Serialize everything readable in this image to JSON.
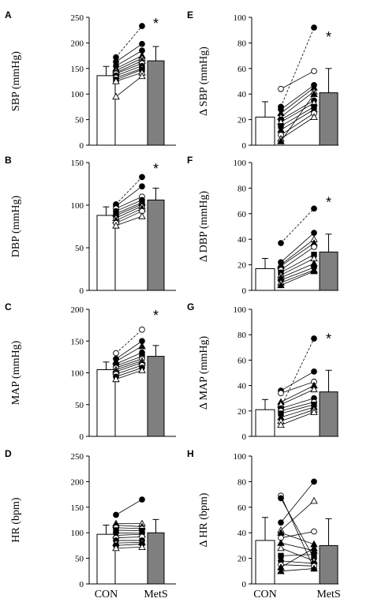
{
  "chart_data": [
    {
      "type": "bar",
      "panel": "A",
      "ylabel": "SBP (mmHg)",
      "ylim": [
        0,
        250
      ],
      "yticks": [
        0,
        50,
        100,
        150,
        200,
        250
      ],
      "categories": [
        "CON",
        "MetS"
      ],
      "values": [
        136,
        165
      ],
      "errors": [
        18,
        28
      ],
      "significance": "*",
      "paired_points": [
        {
          "con": 172,
          "mets": 233,
          "marker": "filled-circle",
          "dashed": true
        },
        {
          "con": 163,
          "mets": 198,
          "marker": "filled-circle"
        },
        {
          "con": 155,
          "mets": 185,
          "marker": "filled-circle"
        },
        {
          "con": 150,
          "mets": 175,
          "marker": "filled-triangle"
        },
        {
          "con": 146,
          "mets": 170,
          "marker": "open-triangle"
        },
        {
          "con": 142,
          "mets": 165,
          "marker": "filled-triangle"
        },
        {
          "con": 140,
          "mets": 160,
          "marker": "open-circle"
        },
        {
          "con": 136,
          "mets": 155,
          "marker": "filled-circle"
        },
        {
          "con": 132,
          "mets": 150,
          "marker": "open-circle"
        },
        {
          "con": 128,
          "mets": 148,
          "marker": "filled-square"
        },
        {
          "con": 125,
          "mets": 142,
          "marker": "open-triangle"
        },
        {
          "con": 95,
          "mets": 135,
          "marker": "open-triangle"
        }
      ]
    },
    {
      "type": "bar",
      "panel": "B",
      "ylabel": "DBP (mmHg)",
      "ylim": [
        0,
        150
      ],
      "yticks": [
        0,
        50,
        100,
        150
      ],
      "categories": [
        "CON",
        "MetS"
      ],
      "values": [
        88,
        106
      ],
      "errors": [
        10,
        14
      ],
      "significance": "*",
      "paired_points": [
        {
          "con": 101,
          "mets": 133,
          "marker": "filled-circle",
          "dashed": true
        },
        {
          "con": 99,
          "mets": 122,
          "marker": "filled-circle"
        },
        {
          "con": 96,
          "mets": 110,
          "marker": "open-circle"
        },
        {
          "con": 93,
          "mets": 106,
          "marker": "filled-circle"
        },
        {
          "con": 90,
          "mets": 103,
          "marker": "filled-triangle"
        },
        {
          "con": 88,
          "mets": 101,
          "marker": "filled-square"
        },
        {
          "con": 85,
          "mets": 99,
          "marker": "open-triangle"
        },
        {
          "con": 82,
          "mets": 96,
          "marker": "filled-triangle"
        },
        {
          "con": 79,
          "mets": 93,
          "marker": "open-circle"
        },
        {
          "con": 76,
          "mets": 87,
          "marker": "open-triangle"
        }
      ]
    },
    {
      "type": "bar",
      "panel": "C",
      "ylabel": "MAP (mmHg)",
      "ylim": [
        0,
        200
      ],
      "yticks": [
        0,
        50,
        100,
        150,
        200
      ],
      "categories": [
        "CON",
        "MetS"
      ],
      "values": [
        105,
        126
      ],
      "errors": [
        12,
        17
      ],
      "significance": "*",
      "paired_points": [
        {
          "con": 131,
          "mets": 168,
          "marker": "open-circle",
          "dashed": true
        },
        {
          "con": 122,
          "mets": 150,
          "marker": "filled-circle"
        },
        {
          "con": 118,
          "mets": 142,
          "marker": "filled-triangle"
        },
        {
          "con": 114,
          "mets": 132,
          "marker": "filled-circle"
        },
        {
          "con": 111,
          "mets": 126,
          "marker": "filled-square"
        },
        {
          "con": 108,
          "mets": 122,
          "marker": "open-circle"
        },
        {
          "con": 105,
          "mets": 119,
          "marker": "open-triangle"
        },
        {
          "con": 102,
          "mets": 116,
          "marker": "filled-triangle"
        },
        {
          "con": 98,
          "mets": 112,
          "marker": "open-circle"
        },
        {
          "con": 94,
          "mets": 108,
          "marker": "filled-circle"
        },
        {
          "con": 90,
          "mets": 104,
          "marker": "open-triangle"
        }
      ]
    },
    {
      "type": "bar",
      "panel": "D",
      "ylabel": "HR (bpm)",
      "ylim": [
        0,
        250
      ],
      "yticks": [
        0,
        50,
        100,
        150,
        200,
        250
      ],
      "categories": [
        "CON",
        "MetS"
      ],
      "values": [
        97,
        100
      ],
      "errors": [
        18,
        26
      ],
      "significance": "",
      "paired_points": [
        {
          "con": 135,
          "mets": 165,
          "marker": "filled-circle"
        },
        {
          "con": 118,
          "mets": 118,
          "marker": "open-triangle"
        },
        {
          "con": 115,
          "mets": 112,
          "marker": "filled-triangle"
        },
        {
          "con": 110,
          "mets": 108,
          "marker": "open-circle"
        },
        {
          "con": 105,
          "mets": 104,
          "marker": "filled-square"
        },
        {
          "con": 100,
          "mets": 99,
          "marker": "filled-circle"
        },
        {
          "con": 95,
          "mets": 97,
          "marker": "filled-triangle"
        },
        {
          "con": 90,
          "mets": 92,
          "marker": "open-circle"
        },
        {
          "con": 85,
          "mets": 85,
          "marker": "filled-circle"
        },
        {
          "con": 80,
          "mets": 81,
          "marker": "open-triangle"
        },
        {
          "con": 75,
          "mets": 78,
          "marker": "filled-circle"
        },
        {
          "con": 70,
          "mets": 72,
          "marker": "open-triangle"
        }
      ]
    },
    {
      "type": "bar",
      "panel": "E",
      "ylabel": "Δ SBP (mmHg)",
      "ylim": [
        0,
        100
      ],
      "yticks": [
        0,
        20,
        40,
        60,
        80,
        100
      ],
      "categories": [
        "CON",
        "MetS"
      ],
      "values": [
        22,
        41
      ],
      "errors": [
        12,
        19
      ],
      "significance": "*",
      "paired_points": [
        {
          "con": 30,
          "mets": 92,
          "marker": "filled-circle",
          "dashed": true
        },
        {
          "con": 44,
          "mets": 58,
          "marker": "open-circle"
        },
        {
          "con": 28,
          "mets": 47,
          "marker": "filled-circle"
        },
        {
          "con": 25,
          "mets": 45,
          "marker": "filled-triangle"
        },
        {
          "con": 22,
          "mets": 42,
          "marker": "open-triangle"
        },
        {
          "con": 20,
          "mets": 35,
          "marker": "filled-circle"
        },
        {
          "con": 18,
          "mets": 33,
          "marker": "open-triangle"
        },
        {
          "con": 15,
          "mets": 30,
          "marker": "filled-square"
        },
        {
          "con": 12,
          "mets": 28,
          "marker": "filled-triangle"
        },
        {
          "con": 8,
          "mets": 25,
          "marker": "open-circle"
        },
        {
          "con": 5,
          "mets": 22,
          "marker": "open-triangle"
        },
        {
          "con": 3,
          "mets": 40,
          "marker": "filled-triangle"
        }
      ]
    },
    {
      "type": "bar",
      "panel": "F",
      "ylabel": "Δ DBP (mmHg)",
      "ylim": [
        0,
        100
      ],
      "yticks": [
        0,
        20,
        40,
        60,
        80,
        100
      ],
      "categories": [
        "CON",
        "MetS"
      ],
      "values": [
        17,
        30
      ],
      "errors": [
        8,
        14
      ],
      "significance": "*",
      "paired_points": [
        {
          "con": 37,
          "mets": 64,
          "marker": "filled-circle",
          "dashed": true
        },
        {
          "con": 22,
          "mets": 45,
          "marker": "filled-circle"
        },
        {
          "con": 20,
          "mets": 40,
          "marker": "open-triangle"
        },
        {
          "con": 19,
          "mets": 37,
          "marker": "filled-triangle"
        },
        {
          "con": 16,
          "mets": 34,
          "marker": "open-circle"
        },
        {
          "con": 14,
          "mets": 28,
          "marker": "filled-square"
        },
        {
          "con": 12,
          "mets": 25,
          "marker": "open-triangle"
        },
        {
          "con": 10,
          "mets": 21,
          "marker": "filled-triangle"
        },
        {
          "con": 8,
          "mets": 18,
          "marker": "filled-circle"
        },
        {
          "con": 6,
          "mets": 16,
          "marker": "open-triangle"
        },
        {
          "con": 4,
          "mets": 15,
          "marker": "filled-triangle"
        }
      ]
    },
    {
      "type": "bar",
      "panel": "G",
      "ylabel": "Δ MAP (mmHg)",
      "ylim": [
        0,
        100
      ],
      "yticks": [
        0,
        20,
        40,
        60,
        80,
        100
      ],
      "categories": [
        "CON",
        "MetS"
      ],
      "values": [
        21,
        35
      ],
      "errors": [
        8,
        17
      ],
      "significance": "*",
      "paired_points": [
        {
          "con": 23,
          "mets": 77,
          "marker": "filled-circle",
          "dashed": true
        },
        {
          "con": 36,
          "mets": 51,
          "marker": "filled-circle"
        },
        {
          "con": 34,
          "mets": 43,
          "marker": "open-circle"
        },
        {
          "con": 27,
          "mets": 40,
          "marker": "filled-triangle"
        },
        {
          "con": 25,
          "mets": 37,
          "marker": "open-triangle"
        },
        {
          "con": 22,
          "mets": 30,
          "marker": "filled-circle"
        },
        {
          "con": 20,
          "mets": 27,
          "marker": "open-circle"
        },
        {
          "con": 18,
          "mets": 25,
          "marker": "filled-square"
        },
        {
          "con": 15,
          "mets": 23,
          "marker": "filled-triangle"
        },
        {
          "con": 12,
          "mets": 21,
          "marker": "open-triangle"
        },
        {
          "con": 9,
          "mets": 19,
          "marker": "open-triangle"
        }
      ]
    },
    {
      "type": "bar",
      "panel": "H",
      "ylabel": "Δ HR (bpm)",
      "ylim": [
        0,
        100
      ],
      "yticks": [
        0,
        20,
        40,
        60,
        80,
        100
      ],
      "categories": [
        "CON",
        "MetS"
      ],
      "values": [
        34,
        30
      ],
      "errors": [
        18,
        21
      ],
      "significance": "",
      "paired_points": [
        {
          "con": 69,
          "mets": 12,
          "marker": "open-circle"
        },
        {
          "con": 67,
          "mets": 20,
          "marker": "filled-circle"
        },
        {
          "con": 48,
          "mets": 80,
          "marker": "filled-circle"
        },
        {
          "con": 42,
          "mets": 65,
          "marker": "open-triangle"
        },
        {
          "con": 40,
          "mets": 31,
          "marker": "filled-triangle"
        },
        {
          "con": 36,
          "mets": 41,
          "marker": "open-circle"
        },
        {
          "con": 32,
          "mets": 26,
          "marker": "filled-triangle"
        },
        {
          "con": 28,
          "mets": 18,
          "marker": "open-triangle"
        },
        {
          "con": 22,
          "mets": 23,
          "marker": "filled-square"
        },
        {
          "con": 18,
          "mets": 16,
          "marker": "filled-circle"
        },
        {
          "con": 15,
          "mets": 14,
          "marker": "open-circle"
        },
        {
          "con": 13,
          "mets": 28,
          "marker": "filled-triangle"
        },
        {
          "con": 10,
          "mets": 12,
          "marker": "filled-triangle"
        }
      ]
    }
  ],
  "x_labels": [
    "CON",
    "MetS"
  ],
  "colors": {
    "con_bar": "#ffffff",
    "mets_bar": "#7f7f7f",
    "axis": "#000000"
  }
}
